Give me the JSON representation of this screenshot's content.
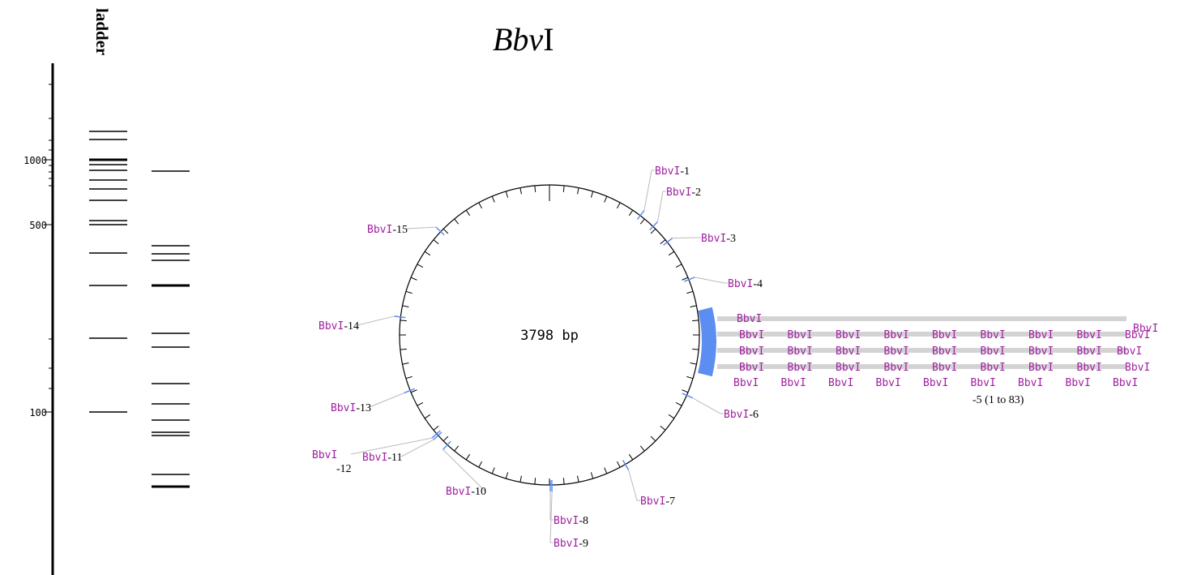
{
  "title": {
    "italic": "Bbv",
    "roman": "I"
  },
  "ladder_label": "ladder",
  "gel_axis_labels": [
    "1000",
    "500",
    "100"
  ],
  "plasmid": {
    "size_label": "3798 bp"
  },
  "sites": [
    {
      "enzyme": "BbvI",
      "number": "-1"
    },
    {
      "enzyme": "BbvI",
      "number": "-2"
    },
    {
      "enzyme": "BbvI",
      "number": "-3"
    },
    {
      "enzyme": "BbvI",
      "number": "-4"
    },
    {
      "enzyme": "BbvI",
      "number": "-6"
    },
    {
      "enzyme": "BbvI",
      "number": "-7"
    },
    {
      "enzyme": "BbvI",
      "number": "-8"
    },
    {
      "enzyme": "BbvI",
      "number": "-9"
    },
    {
      "enzyme": "BbvI",
      "number": "-10"
    },
    {
      "enzyme": "BbvI",
      "number": "-11"
    },
    {
      "enzyme": "BbvI",
      "number": "-12"
    },
    {
      "enzyme": "BbvI",
      "number": "-13"
    },
    {
      "enzyme": "BbvI",
      "number": "-14"
    },
    {
      "enzyme": "BbvI",
      "number": "-15"
    }
  ],
  "cluster": {
    "enzyme": "BbvI",
    "note": "-5 (1 to 83)"
  }
}
